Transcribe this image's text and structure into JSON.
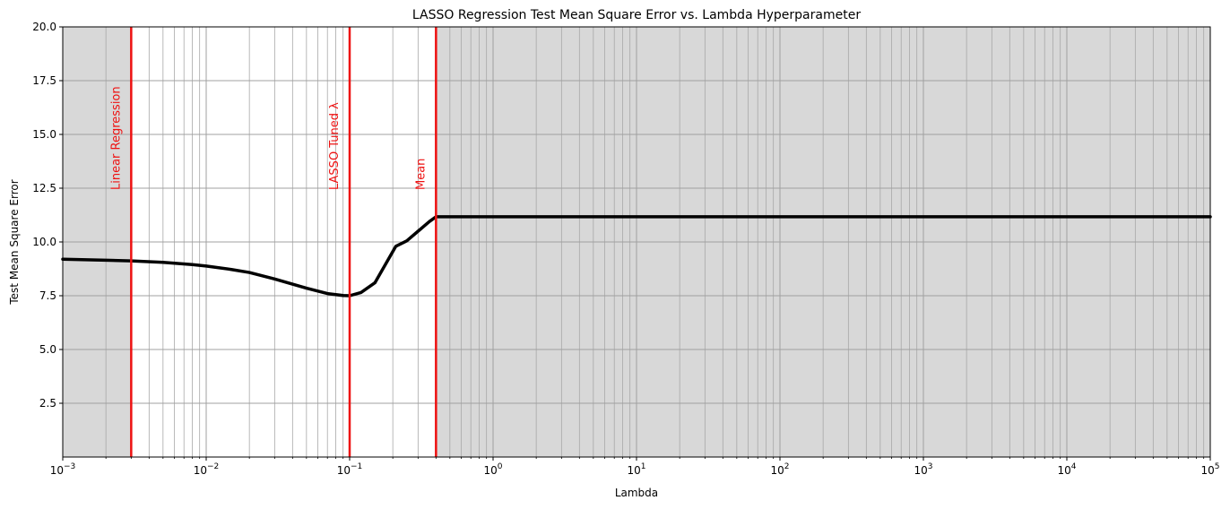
{
  "chart_data": {
    "type": "line",
    "title": "LASSO Regression Test Mean Square Error vs. Lambda Hyperparameter",
    "xlabel": "Lambda",
    "ylabel": "Test Mean Square Error",
    "xscale": "log",
    "xlim": [
      0.001,
      100000
    ],
    "ylim": [
      0,
      20
    ],
    "grid": true,
    "grid_minor": true,
    "x_ticks": [
      {
        "value": 0.001,
        "base": "10",
        "exp": "−3"
      },
      {
        "value": 0.01,
        "base": "10",
        "exp": "−2"
      },
      {
        "value": 0.1,
        "base": "10",
        "exp": "−1"
      },
      {
        "value": 1,
        "base": "10",
        "exp": "0"
      },
      {
        "value": 10,
        "base": "10",
        "exp": "1"
      },
      {
        "value": 100,
        "base": "10",
        "exp": "2"
      },
      {
        "value": 1000,
        "base": "10",
        "exp": "3"
      },
      {
        "value": 10000,
        "base": "10",
        "exp": "4"
      },
      {
        "value": 100000,
        "base": "10",
        "exp": "5"
      }
    ],
    "y_ticks": [
      {
        "value": 2.5,
        "label": "2.5"
      },
      {
        "value": 5.0,
        "label": "5.0"
      },
      {
        "value": 7.5,
        "label": "7.5"
      },
      {
        "value": 10.0,
        "label": "10.0"
      },
      {
        "value": 12.5,
        "label": "12.5"
      },
      {
        "value": 15.0,
        "label": "15.0"
      },
      {
        "value": 17.5,
        "label": "17.5"
      },
      {
        "value": 20.0,
        "label": "20.0"
      }
    ],
    "shaded_regions": [
      {
        "from": 0.001,
        "to": 0.003,
        "color": "#d8d8d8"
      },
      {
        "from": 0.4,
        "to": 100000,
        "color": "#d8d8d8"
      }
    ],
    "vlines": [
      {
        "x": 0.003,
        "label": "Linear Regression",
        "color": "#ee1111"
      },
      {
        "x": 0.1,
        "label": "LASSO Tuned λ",
        "color": "#ee1111"
      },
      {
        "x": 0.4,
        "label": "Mean",
        "color": "#ee1111"
      }
    ],
    "series": [
      {
        "color": "#000000",
        "x": [
          0.001,
          0.002,
          0.003,
          0.005,
          0.008,
          0.01,
          0.015,
          0.02,
          0.03,
          0.05,
          0.07,
          0.09,
          0.1,
          0.12,
          0.15,
          0.21,
          0.25,
          0.3,
          0.36,
          0.4,
          1,
          10,
          100,
          1000,
          10000,
          100000
        ],
        "y": [
          9.2,
          9.15,
          9.12,
          9.05,
          8.95,
          8.88,
          8.72,
          8.58,
          8.28,
          7.85,
          7.6,
          7.51,
          7.5,
          7.65,
          8.1,
          9.8,
          10.05,
          10.5,
          10.95,
          11.17,
          11.17,
          11.17,
          11.17,
          11.17,
          11.17,
          11.17
        ]
      }
    ]
  }
}
